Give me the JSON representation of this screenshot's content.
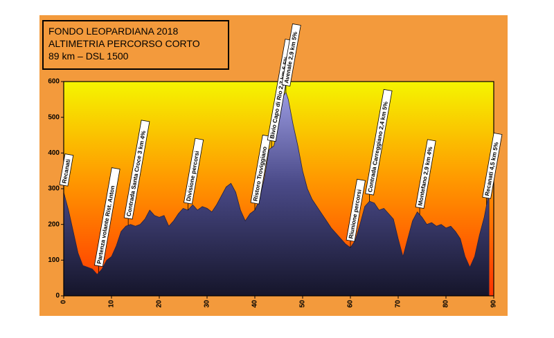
{
  "chart_data": {
    "type": "area",
    "title": "FONDO LEOPARDIANA 2018",
    "subtitle": "ALTIMETRIA PERCORSO CORTO",
    "caption": "89 km – DSL 1500",
    "x": [
      0,
      1,
      2,
      3,
      4,
      5,
      6,
      7,
      8,
      9,
      10,
      11,
      12,
      13,
      14,
      15,
      16,
      17,
      18,
      19,
      20,
      21,
      22,
      23,
      24,
      25,
      26,
      27,
      28,
      29,
      30,
      31,
      32,
      33,
      34,
      35,
      36,
      37,
      38,
      39,
      40,
      41,
      42,
      43,
      44,
      45,
      46,
      46.5,
      47,
      48,
      49,
      50,
      51,
      52,
      53,
      54,
      55,
      56,
      57,
      58,
      59,
      60,
      61,
      62,
      63,
      64,
      65,
      66,
      67,
      68,
      69,
      70,
      71,
      72,
      73,
      74,
      75,
      76,
      77,
      78,
      79,
      80,
      81,
      82,
      83,
      84,
      85,
      86,
      87,
      88,
      89
    ],
    "values": [
      290,
      240,
      180,
      120,
      85,
      80,
      75,
      60,
      75,
      100,
      110,
      140,
      180,
      195,
      200,
      195,
      200,
      215,
      240,
      225,
      220,
      225,
      195,
      210,
      230,
      245,
      240,
      255,
      240,
      250,
      245,
      235,
      255,
      280,
      305,
      315,
      290,
      240,
      210,
      230,
      240,
      270,
      330,
      410,
      420,
      480,
      560,
      570,
      550,
      480,
      420,
      350,
      300,
      270,
      250,
      230,
      210,
      190,
      175,
      160,
      145,
      135,
      155,
      200,
      250,
      265,
      260,
      240,
      245,
      230,
      215,
      160,
      110,
      160,
      210,
      235,
      220,
      200,
      205,
      195,
      200,
      190,
      195,
      180,
      160,
      110,
      80,
      110,
      170,
      220,
      290
    ],
    "xlim": [
      0,
      90
    ],
    "xticks": [
      0,
      10,
      20,
      30,
      40,
      50,
      60,
      70,
      80,
      90
    ],
    "ylim": [
      0,
      600
    ],
    "yticks": [
      0,
      100,
      200,
      300,
      400,
      500,
      600
    ],
    "annotations": [
      {
        "text": "Recanati",
        "x": 0
      },
      {
        "text": "Partenza volante Rist. Anton",
        "x": 7.3
      },
      {
        "text": "Contrada Santa Croce 3 km 4%",
        "x": 13.5
      },
      {
        "text": "Divisione percorsi",
        "x": 26
      },
      {
        "text": "Ristoro Troviggiano",
        "x": 40
      },
      {
        "text": "Bivio Capo di Rio 2,7 km 6,5%",
        "x": 43.5
      },
      {
        "text": "Avenale 2,9 km 5%",
        "x": 46.5
      },
      {
        "text": "Riunione percorsi",
        "x": 60
      },
      {
        "text": "Contrada Carreggiano 2,4 km 5%",
        "x": 64
      },
      {
        "text": "Montefano 2,9 km 4%",
        "x": 74.5
      },
      {
        "text": "Recanati 4,5 km 5%",
        "x": 88.5
      }
    ]
  }
}
